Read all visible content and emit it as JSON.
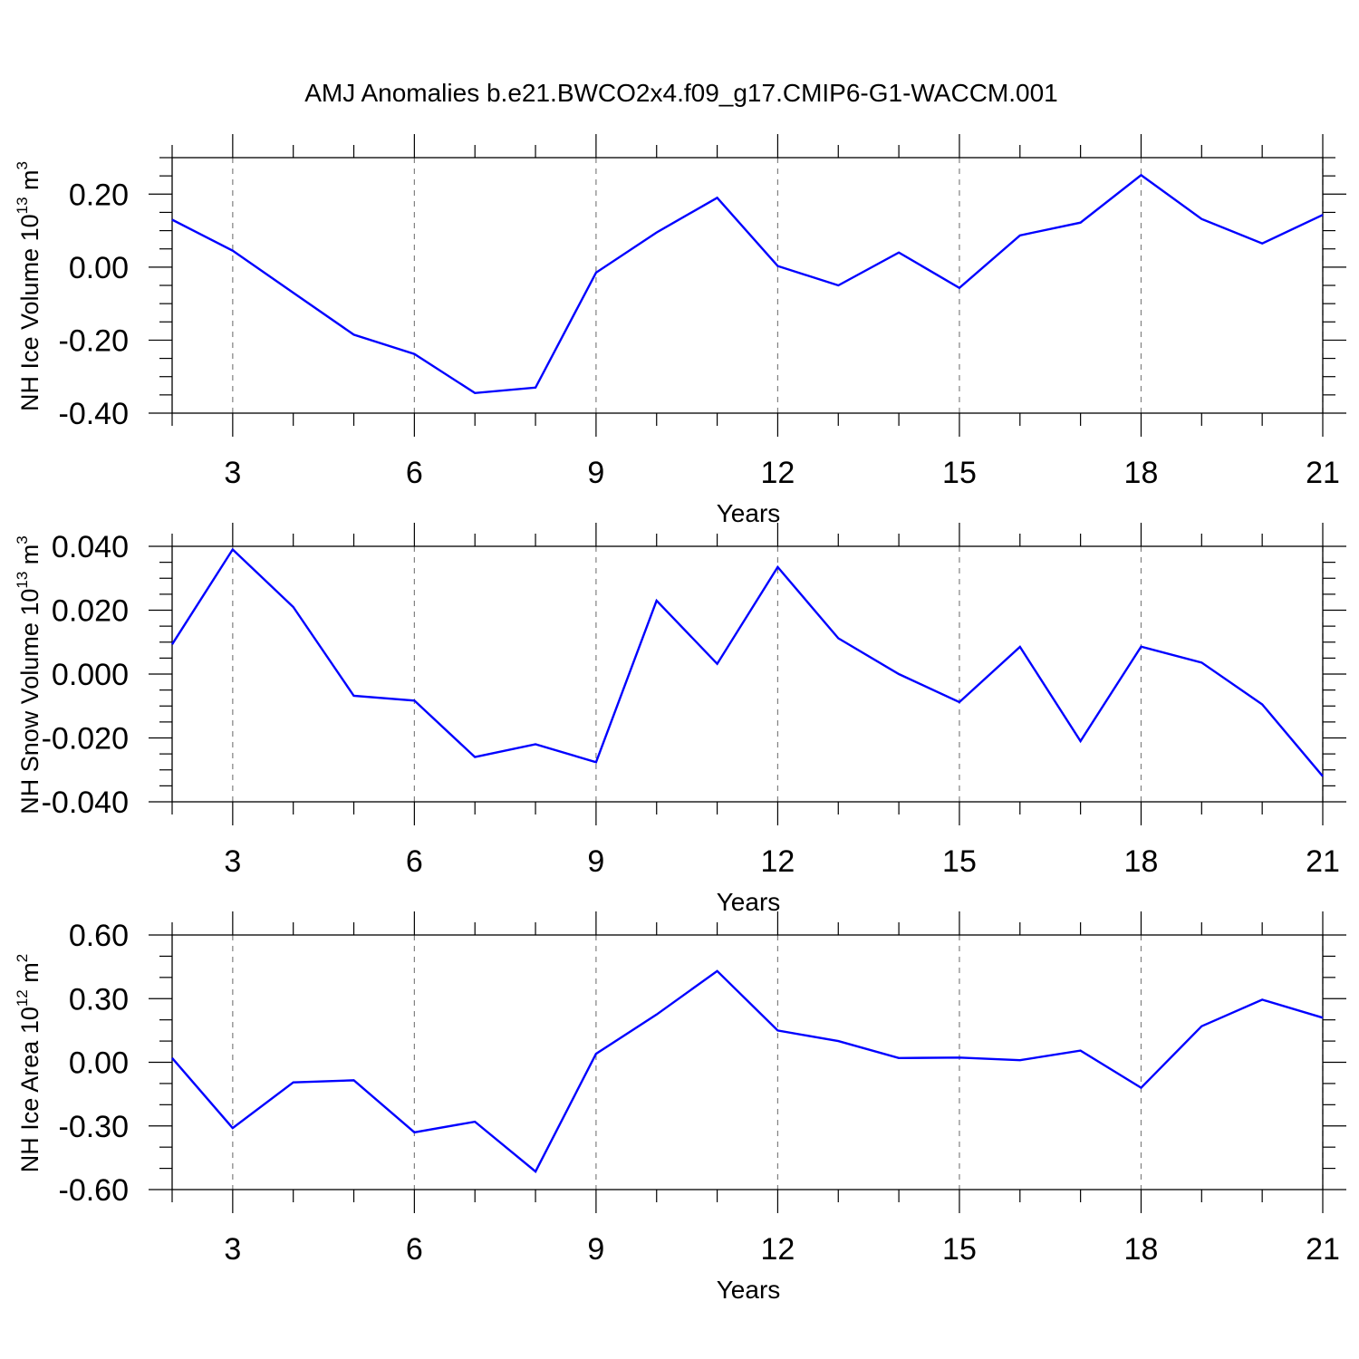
{
  "title": "AMJ Anomalies b.e21.BWCO2x4.f09_g17.CMIP6-G1-WACCM.001",
  "colors": {
    "line": "#0000ff",
    "axis": "#000000",
    "grid": "#808080"
  },
  "chart_data": [
    {
      "type": "line",
      "xlabel": "Years",
      "ylabel": {
        "text": "NH Ice Volume 10",
        "sup": "13",
        "unit": " m",
        "unit_sup": "3"
      },
      "xlim": [
        2,
        21
      ],
      "ylim": [
        -0.4,
        0.3
      ],
      "xticks": [
        3,
        6,
        9,
        12,
        15,
        18,
        21
      ],
      "xtick_labels": [
        "3",
        "6",
        "9",
        "12",
        "15",
        "18",
        "21"
      ],
      "yticks": [
        -0.4,
        -0.2,
        0.0,
        0.2
      ],
      "ytick_labels": [
        "-0.40",
        "-0.20",
        "0.00",
        "0.20"
      ],
      "y_minor_step": 0.05,
      "x_grid": "dashed vertical at major x ticks",
      "x": [
        2,
        3,
        4,
        5,
        6,
        7,
        8,
        9,
        10,
        11,
        12,
        13,
        14,
        15,
        16,
        17,
        18,
        19,
        20,
        21
      ],
      "values": [
        0.13,
        0.045,
        -0.07,
        -0.185,
        -0.238,
        -0.345,
        -0.33,
        -0.015,
        0.095,
        0.19,
        0.003,
        -0.05,
        0.04,
        -0.057,
        0.087,
        0.122,
        0.252,
        0.132,
        0.065,
        0.143
      ]
    },
    {
      "type": "line",
      "xlabel": "Years",
      "ylabel": {
        "text": "NH Snow Volume 10",
        "sup": "13",
        "unit": " m",
        "unit_sup": "3"
      },
      "xlim": [
        2,
        21
      ],
      "ylim": [
        -0.04,
        0.04
      ],
      "xticks": [
        3,
        6,
        9,
        12,
        15,
        18,
        21
      ],
      "xtick_labels": [
        "3",
        "6",
        "9",
        "12",
        "15",
        "18",
        "21"
      ],
      "yticks": [
        -0.04,
        -0.02,
        0.0,
        0.02,
        0.04
      ],
      "ytick_labels": [
        "-0.040",
        "-0.020",
        "0.000",
        "0.020",
        "0.040"
      ],
      "y_minor_step": 0.005,
      "x_grid": "dashed vertical at major x ticks",
      "x": [
        2,
        3,
        4,
        5,
        6,
        7,
        8,
        9,
        10,
        11,
        12,
        13,
        14,
        15,
        16,
        17,
        18,
        19,
        20,
        21
      ],
      "values": [
        0.0093,
        0.039,
        0.021,
        -0.0068,
        -0.0083,
        -0.026,
        -0.022,
        -0.0276,
        0.023,
        0.0032,
        0.0335,
        0.0112,
        0.0,
        -0.0088,
        0.0085,
        -0.021,
        0.0086,
        0.0036,
        -0.0095,
        -0.032
      ]
    },
    {
      "type": "line",
      "xlabel": "Years",
      "ylabel": {
        "text": "NH Ice Area 10",
        "sup": "12",
        "unit": " m",
        "unit_sup": "2"
      },
      "xlim": [
        2,
        21
      ],
      "ylim": [
        -0.6,
        0.6
      ],
      "xticks": [
        3,
        6,
        9,
        12,
        15,
        18,
        21
      ],
      "xtick_labels": [
        "3",
        "6",
        "9",
        "12",
        "15",
        "18",
        "21"
      ],
      "yticks": [
        -0.6,
        -0.3,
        0.0,
        0.3,
        0.6
      ],
      "ytick_labels": [
        "-0.60",
        "-0.30",
        "0.00",
        "0.30",
        "0.60"
      ],
      "y_minor_step": 0.1,
      "x_grid": "dashed vertical at major x ticks",
      "x": [
        2,
        3,
        4,
        5,
        6,
        7,
        8,
        9,
        10,
        11,
        12,
        13,
        14,
        15,
        16,
        17,
        18,
        19,
        20,
        21
      ],
      "values": [
        0.02,
        -0.31,
        -0.095,
        -0.085,
        -0.33,
        -0.28,
        -0.515,
        0.04,
        0.225,
        0.43,
        0.15,
        0.1,
        0.02,
        0.022,
        0.01,
        0.055,
        -0.12,
        0.17,
        0.295,
        0.21
      ]
    }
  ]
}
